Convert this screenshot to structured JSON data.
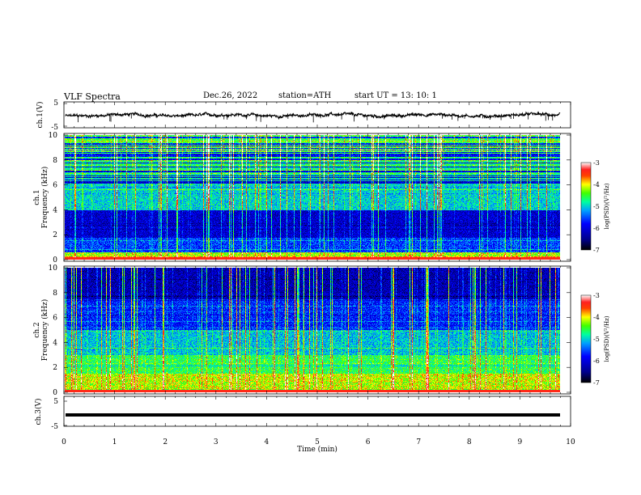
{
  "header": {
    "title": "VLF  Spectra",
    "date": "Dec.26, 2022",
    "station": "station=ATH",
    "start": "start  UT  =    13: 10: 1"
  },
  "chart_data": [
    {
      "type": "line",
      "name": "ch1-waveform",
      "ylabel": "ch.1(V)",
      "yticks": [
        "5",
        "-5"
      ],
      "ylim": [
        -5,
        5
      ],
      "xlim": [
        0,
        10
      ],
      "color": "#000000"
    },
    {
      "type": "heatmap",
      "name": "ch1-spectrogram",
      "ylabel": "ch.1\nFrequency (kHz)",
      "ylabel_line1": "ch.1",
      "ylabel_line2": "Frequency  (kHz)",
      "ylim": [
        0,
        10
      ],
      "yticks": [
        "0",
        "2",
        "4",
        "6",
        "8",
        "10"
      ],
      "xlim": [
        0,
        9.8
      ],
      "colorbar": {
        "label": "log(PSD)(V²/Hz)",
        "ticks": [
          "-3",
          "-4",
          "-5",
          "-6",
          "-7"
        ],
        "range": [
          -7,
          -3
        ]
      }
    },
    {
      "type": "heatmap",
      "name": "ch2-spectrogram",
      "ylabel_line1": "ch.2",
      "ylabel_line2": "Frequency  (kHz)",
      "ylim": [
        0,
        10
      ],
      "yticks": [
        "0",
        "2",
        "4",
        "6",
        "8",
        "10"
      ],
      "xlim": [
        0,
        9.8
      ],
      "colorbar": {
        "label": "log(PSD)(V²/Hz)",
        "ticks": [
          "-3",
          "-4",
          "-5",
          "-6",
          "-7"
        ],
        "range": [
          -7,
          -3
        ]
      }
    },
    {
      "type": "line",
      "name": "ch3-waveform",
      "ylabel": "ch.3(V)",
      "yticks": [
        "5",
        "-5"
      ],
      "ylim": [
        -5,
        5
      ],
      "value": -1.2,
      "xlim": [
        0,
        10
      ],
      "xlabel": "Time  (min)",
      "xticks": [
        "0",
        "1",
        "2",
        "3",
        "4",
        "5",
        "6",
        "7",
        "8",
        "9",
        "10"
      ]
    }
  ]
}
